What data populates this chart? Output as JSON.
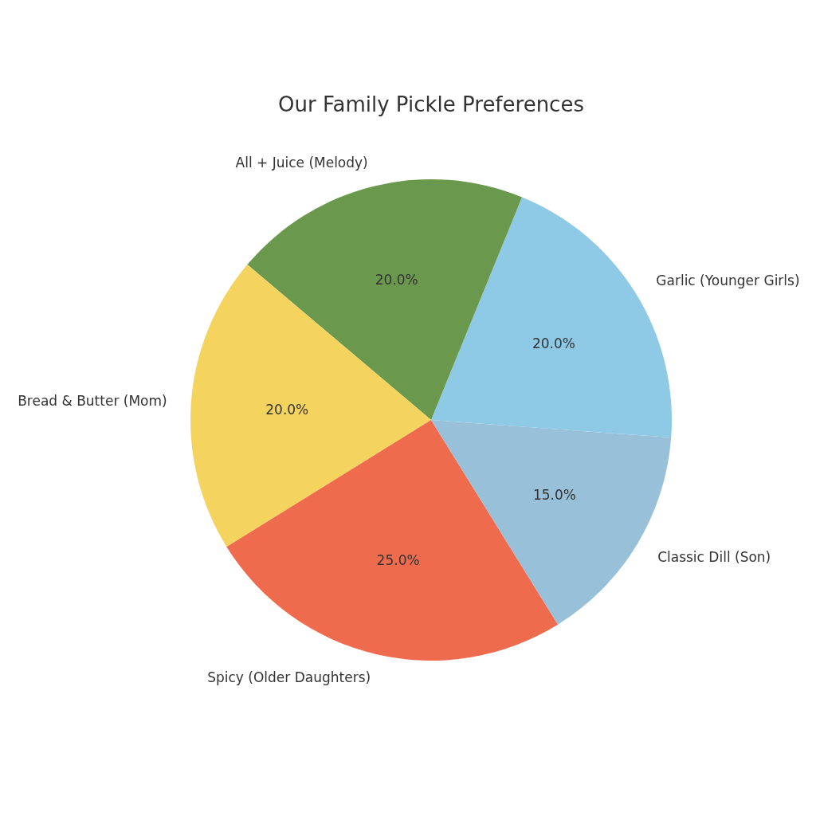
{
  "chart_data": {
    "type": "pie",
    "title": "Our Family Pickle Preferences",
    "categories": [
      "Garlic (Younger Girls)",
      "All + Juice (Melody)",
      "Bread & Butter (Mom)",
      "Spicy (Older Daughters)",
      "Classic Dill (Son)"
    ],
    "values": [
      20,
      20,
      20,
      25,
      15
    ],
    "colors": [
      "#8ecae6",
      "#6a994e",
      "#f4d35e",
      "#ee6c4d",
      "#98c1d9"
    ],
    "value_labels": [
      "20.0%",
      "20.0%",
      "20.0%",
      "25.0%",
      "15.0%"
    ]
  }
}
